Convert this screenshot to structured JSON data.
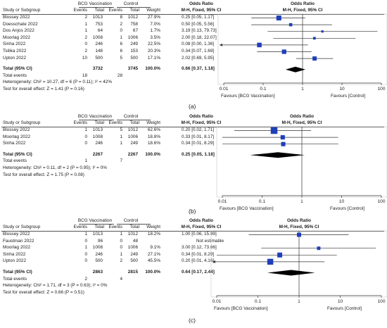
{
  "panels": [
    {
      "id": "a",
      "caption": "(a)",
      "header": {
        "group_treat": "BCG Vaccination",
        "group_ctrl": "Control",
        "col_study": "Study or Subgroup",
        "col_events": "Events",
        "col_total": "Total",
        "col_weight": "Weight",
        "col_or_title": "Odds Ratio",
        "col_or_sub": "M-H, Fixed, 95% CI",
        "plot_title": "Odds Ratio",
        "plot_sub": "M-H, Fixed, 95% CI"
      },
      "studies": [
        {
          "name": "Blossey 2022",
          "ev_t": "2",
          "tot_t": "1013",
          "ev_c": "8",
          "tot_c": "1012",
          "weight": "27.9%",
          "ci_text": "0.25 [0.05, 1.17]",
          "or": 0.25,
          "lo": 0.05,
          "hi": 1.17,
          "w": 27.9
        },
        {
          "name": "Doesschate 2022",
          "ev_t": "1",
          "tot_t": "753",
          "ev_c": "2",
          "tot_c": "758",
          "weight": "7.0%",
          "ci_text": "0.50 [0.05, 5.56]",
          "or": 0.5,
          "lo": 0.05,
          "hi": 5.56,
          "w": 7.0
        },
        {
          "name": "Dos Anjos 2022",
          "ev_t": "1",
          "tot_t": "64",
          "ev_c": "0",
          "tot_c": "67",
          "weight": "1.7%",
          "ci_text": "3.19 [0.13, 79.73]",
          "or": 3.19,
          "lo": 0.13,
          "hi": 79.73,
          "w": 1.7
        },
        {
          "name": "Moorlag 2022",
          "ev_t": "2",
          "tot_t": "1008",
          "ev_c": "1",
          "tot_c": "1006",
          "weight": "3.5%",
          "ci_text": "2.00 [0.18, 22.07]",
          "or": 2.0,
          "lo": 0.18,
          "hi": 22.07,
          "w": 3.5
        },
        {
          "name": "Sinha 2022",
          "ev_t": "0",
          "tot_t": "246",
          "ev_c": "6",
          "tot_c": "249",
          "weight": "22.5%",
          "ci_text": "0.08 [0.00, 1.36]",
          "or": 0.08,
          "lo": 0.005,
          "hi": 1.36,
          "w": 22.5
        },
        {
          "name": "Tsilika 2022",
          "ev_t": "2",
          "tot_t": "148",
          "ev_c": "6",
          "tot_c": "153",
          "weight": "20.3%",
          "ci_text": "0.34 [0.07, 1.69]",
          "or": 0.34,
          "lo": 0.07,
          "hi": 1.69,
          "w": 20.3
        },
        {
          "name": "Upton 2022",
          "ev_t": "10",
          "tot_t": "500",
          "ev_c": "5",
          "tot_c": "500",
          "weight": "17.1%",
          "ci_text": "2.02 [0.69, 5.95]",
          "or": 2.02,
          "lo": 0.69,
          "hi": 5.95,
          "w": 17.1
        }
      ],
      "total": {
        "label": "Total (95% CI)",
        "tot_t": "3732",
        "tot_c": "3745",
        "weight": "100.0%",
        "ci_text": "0.66 [0.37, 1.18]",
        "or": 0.66,
        "lo": 0.37,
        "hi": 1.18
      },
      "total_events": {
        "label": "Total events",
        "ev_t": "18",
        "ev_c": "28"
      },
      "heterogeneity": "Heterogeneity: Chi² = 10.27, df = 6 (P = 0.11); I² = 42%",
      "overall": "Test for overall effect: Z = 1.41 (P = 0.16)",
      "axis": {
        "ticks": [
          0.01,
          0.1,
          1,
          10,
          100
        ],
        "tick_labels": [
          "0.01",
          "0.1",
          "1",
          "10",
          "100"
        ],
        "min": 0.01,
        "max": 100,
        "favours_left": "Favours [BCG Vaccination]",
        "favours_right": "Favours [Control]"
      }
    },
    {
      "id": "b",
      "caption": "(b)",
      "header": {
        "group_treat": "BCG Vaccination",
        "group_ctrl": "Control",
        "col_study": "Study or Subgroup",
        "col_events": "Events",
        "col_total": "Total",
        "col_weight": "Weight",
        "col_or_title": "Odds Ratio",
        "col_or_sub": "M-H, Fixed, 95% CI",
        "plot_title": "Odds Ratio",
        "plot_sub": "M-H, Fixed, 95% CI"
      },
      "studies": [
        {
          "name": "Blossey 2022",
          "ev_t": "1",
          "tot_t": "1013",
          "ev_c": "5",
          "tot_c": "1012",
          "weight": "62.6%",
          "ci_text": "0.20 [0.02, 1.71]",
          "or": 0.2,
          "lo": 0.02,
          "hi": 1.71,
          "w": 62.6
        },
        {
          "name": "Moorlag 2022",
          "ev_t": "0",
          "tot_t": "1008",
          "ev_c": "1",
          "tot_c": "1006",
          "weight": "18.8%",
          "ci_text": "0.33 [0.01, 8.17]",
          "or": 0.33,
          "lo": 0.01,
          "hi": 8.17,
          "w": 18.8
        },
        {
          "name": "Sinha 2022",
          "ev_t": "0",
          "tot_t": "246",
          "ev_c": "1",
          "tot_c": "249",
          "weight": "18.6%",
          "ci_text": "0.34 [0.01, 8.29]",
          "or": 0.34,
          "lo": 0.01,
          "hi": 8.29,
          "w": 18.6
        }
      ],
      "total": {
        "label": "Total (95% CI)",
        "tot_t": "2267",
        "tot_c": "2267",
        "weight": "100.0%",
        "ci_text": "0.25 [0.05, 1.18]",
        "or": 0.25,
        "lo": 0.05,
        "hi": 1.18
      },
      "total_events": {
        "label": "Total events",
        "ev_t": "1",
        "ev_c": "7"
      },
      "heterogeneity": "Heterogeneity: Chi² = 0.11, df = 2 (P = 0.95); I² = 0%",
      "overall": "Test for overall effect: Z = 1.75 (P = 0.08)",
      "axis": {
        "ticks": [
          0.01,
          0.1,
          1,
          10,
          100
        ],
        "tick_labels": [
          "0.01",
          "0.1",
          "1",
          "10",
          "100"
        ],
        "min": 0.01,
        "max": 100,
        "favours_left": "Favours [BCG Vaccination]",
        "favours_right": "Favours [Control]"
      }
    },
    {
      "id": "c",
      "caption": "(c)",
      "header": {
        "group_treat": "BCG Vaccination",
        "group_ctrl": "Control",
        "col_study": "Study or Subgroup",
        "col_events": "Events",
        "col_total": "Total",
        "col_weight": "Weight",
        "col_or_title": "Odds Ratio",
        "col_or_sub": "M-H, Fixed, 95% CI",
        "plot_title": "Odds Ratio",
        "plot_sub": "M-H, Fixed, 95% CI"
      },
      "studies": [
        {
          "name": "Blossey 2022",
          "ev_t": "1",
          "tot_t": "1013",
          "ev_c": "1",
          "tot_c": "1012",
          "weight": "18.2%",
          "ci_text": "1.00 [0.06, 15.99]",
          "or": 1.0,
          "lo": 0.06,
          "hi": 15.99,
          "w": 18.2
        },
        {
          "name": "Faustman 2022",
          "ev_t": "0",
          "tot_t": "96",
          "ev_c": "0",
          "tot_c": "48",
          "weight": "",
          "ci_text": "Not estimable",
          "or": null,
          "lo": null,
          "hi": null,
          "w": 0
        },
        {
          "name": "Moorlag 2022",
          "ev_t": "1",
          "tot_t": "1008",
          "ev_c": "0",
          "tot_c": "1006",
          "weight": "9.1%",
          "ci_text": "3.00 [0.12, 73.66]",
          "or": 3.0,
          "lo": 0.12,
          "hi": 73.66,
          "w": 9.1
        },
        {
          "name": "Sinha 2022",
          "ev_t": "0",
          "tot_t": "246",
          "ev_c": "1",
          "tot_c": "249",
          "weight": "27.1%",
          "ci_text": "0.34 [0.01, 8.29]",
          "or": 0.34,
          "lo": 0.01,
          "hi": 8.29,
          "w": 27.1
        },
        {
          "name": "Upton 2022",
          "ev_t": "0",
          "tot_t": "500",
          "ev_c": "2",
          "tot_c": "500",
          "weight": "45.5%",
          "ci_text": "0.20 [0.01, 4.16]",
          "or": 0.2,
          "lo": 0.005,
          "hi": 4.16,
          "w": 45.5
        }
      ],
      "total": {
        "label": "Total (95% CI)",
        "tot_t": "2863",
        "tot_c": "2815",
        "weight": "100.0%",
        "ci_text": "0.64 [0.17, 2.44]",
        "or": 0.64,
        "lo": 0.17,
        "hi": 2.44
      },
      "total_events": {
        "label": "Total events",
        "ev_t": "2",
        "ev_c": "4"
      },
      "heterogeneity": "Heterogeneity: Chi² = 1.71, df = 3 (P = 0.63); I² = 0%",
      "overall": "Test for overall effect: Z = 0.66 (P = 0.51)",
      "axis": {
        "ticks": [
          0.01,
          0.1,
          1,
          10,
          100
        ],
        "tick_labels": [
          "0.01",
          "0.1",
          "1",
          "10",
          "100"
        ],
        "min": 0.01,
        "max": 100,
        "favours_left": "Favours [BCG Vaccination]",
        "favours_right": "Favours [Control]"
      }
    }
  ]
}
